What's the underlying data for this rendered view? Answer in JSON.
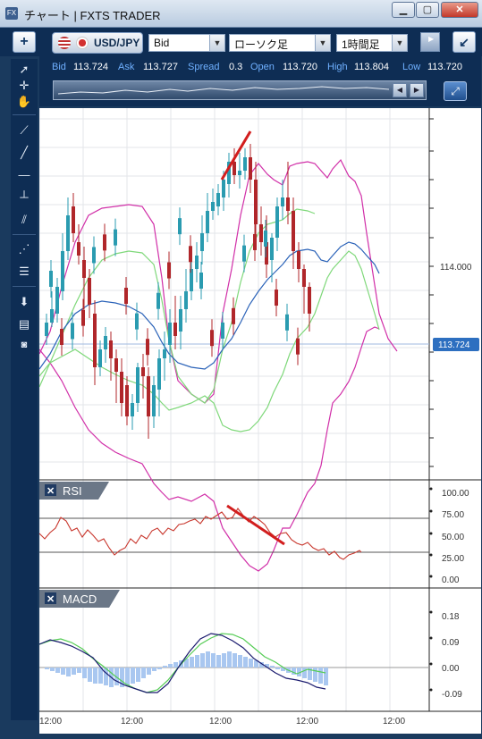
{
  "window": {
    "title": "チャート | FXTS TRADER",
    "app_icon": "FX"
  },
  "toolbar": {
    "add_label": "+",
    "symbol": "USD/JPY",
    "price_type": "Bid",
    "chart_type": "ローソク足",
    "timeframe": "1時間足",
    "collapse_label": "↙"
  },
  "prices": {
    "bid_label": "Bid",
    "bid": "113.724",
    "ask_label": "Ask",
    "ask": "113.727",
    "spread_label": "Spread",
    "spread": "0.3",
    "open_label": "Open",
    "open": "113.720",
    "high_label": "High",
    "high": "113.804",
    "low_label": "Low",
    "low": "113.720"
  },
  "main_axis": {
    "labels": [
      "114.000"
    ],
    "current_price": "113.724"
  },
  "rsi": {
    "title": "RSI",
    "axis": [
      "100.00",
      "75.00",
      "50.00",
      "25.00",
      "0.00"
    ]
  },
  "macd": {
    "title": "MACD",
    "axis": [
      "0.18",
      "0.09",
      "0.00",
      "-0.09"
    ]
  },
  "time_axis": {
    "labels": [
      "12:00",
      "12:00",
      "12:00",
      "12:00",
      "12:00"
    ]
  },
  "colors": {
    "up": "#2a9bb0",
    "down": "#b0262a",
    "bollinger_outer": "#d12fa8",
    "bollinger_inner": "#7fd87a",
    "middle_band": "#2a62b8",
    "rsi": "#c8362c",
    "macd_line": "#1a1a6e",
    "signal_line": "#55cc55",
    "histogram": "#a9c7f0",
    "trendline": "#d21e1e",
    "current_price_badge": "#2d6fc0"
  }
}
